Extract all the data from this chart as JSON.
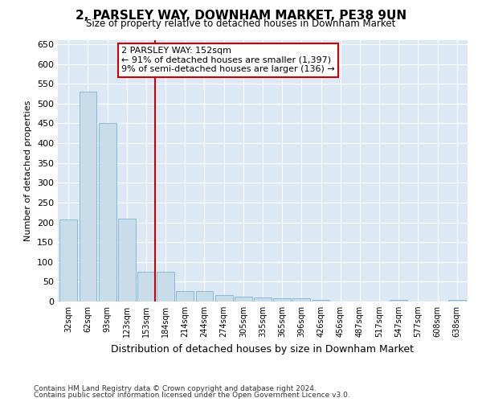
{
  "title": "2, PARSLEY WAY, DOWNHAM MARKET, PE38 9UN",
  "subtitle": "Size of property relative to detached houses in Downham Market",
  "xlabel": "Distribution of detached houses by size in Downham Market",
  "ylabel": "Number of detached properties",
  "footnote1": "Contains HM Land Registry data © Crown copyright and database right 2024.",
  "footnote2": "Contains public sector information licensed under the Open Government Licence v3.0.",
  "categories": [
    "32sqm",
    "62sqm",
    "93sqm",
    "123sqm",
    "153sqm",
    "184sqm",
    "214sqm",
    "244sqm",
    "274sqm",
    "305sqm",
    "335sqm",
    "365sqm",
    "396sqm",
    "426sqm",
    "456sqm",
    "487sqm",
    "517sqm",
    "547sqm",
    "577sqm",
    "608sqm",
    "638sqm"
  ],
  "values": [
    208,
    530,
    450,
    210,
    75,
    75,
    27,
    27,
    16,
    12,
    10,
    8,
    8,
    5,
    0,
    0,
    0,
    5,
    0,
    0,
    5
  ],
  "bar_color": "#c9dcea",
  "bar_edge_color": "#7ab4d4",
  "highlight_index": 4,
  "highlight_line_color": "#cc0000",
  "annotation_text": "2 PARSLEY WAY: 152sqm\n← 91% of detached houses are smaller (1,397)\n9% of semi-detached houses are larger (136) →",
  "annotation_box_color": "#cc0000",
  "ylim": [
    0,
    660
  ],
  "yticks": [
    0,
    50,
    100,
    150,
    200,
    250,
    300,
    350,
    400,
    450,
    500,
    550,
    600,
    650
  ],
  "bg_color": "#ffffff",
  "plot_bg_color": "#dce9f5"
}
